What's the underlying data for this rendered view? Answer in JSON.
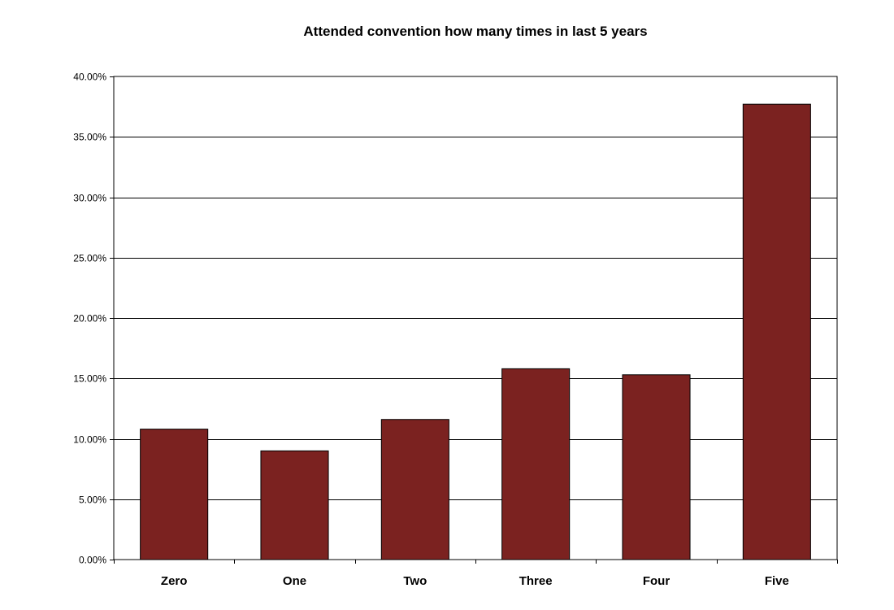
{
  "chart_data": {
    "type": "bar",
    "title": "Attended convention how many times in last 5 years",
    "xlabel": "",
    "ylabel": "",
    "categories": [
      "Zero",
      "One",
      "Two",
      "Three",
      "Four",
      "Five"
    ],
    "values": [
      10.8,
      9.0,
      11.6,
      15.8,
      15.3,
      37.7
    ],
    "ylim": [
      0,
      40
    ],
    "yticks": [
      0,
      5,
      10,
      15,
      20,
      25,
      30,
      35,
      40
    ],
    "ytick_labels": [
      "0.00%",
      "5.00%",
      "10.00%",
      "15.00%",
      "20.00%",
      "25.00%",
      "30.00%",
      "35.00%",
      "40.00%"
    ],
    "grid": true,
    "legend": "none",
    "bar_color": "#7b2220"
  }
}
